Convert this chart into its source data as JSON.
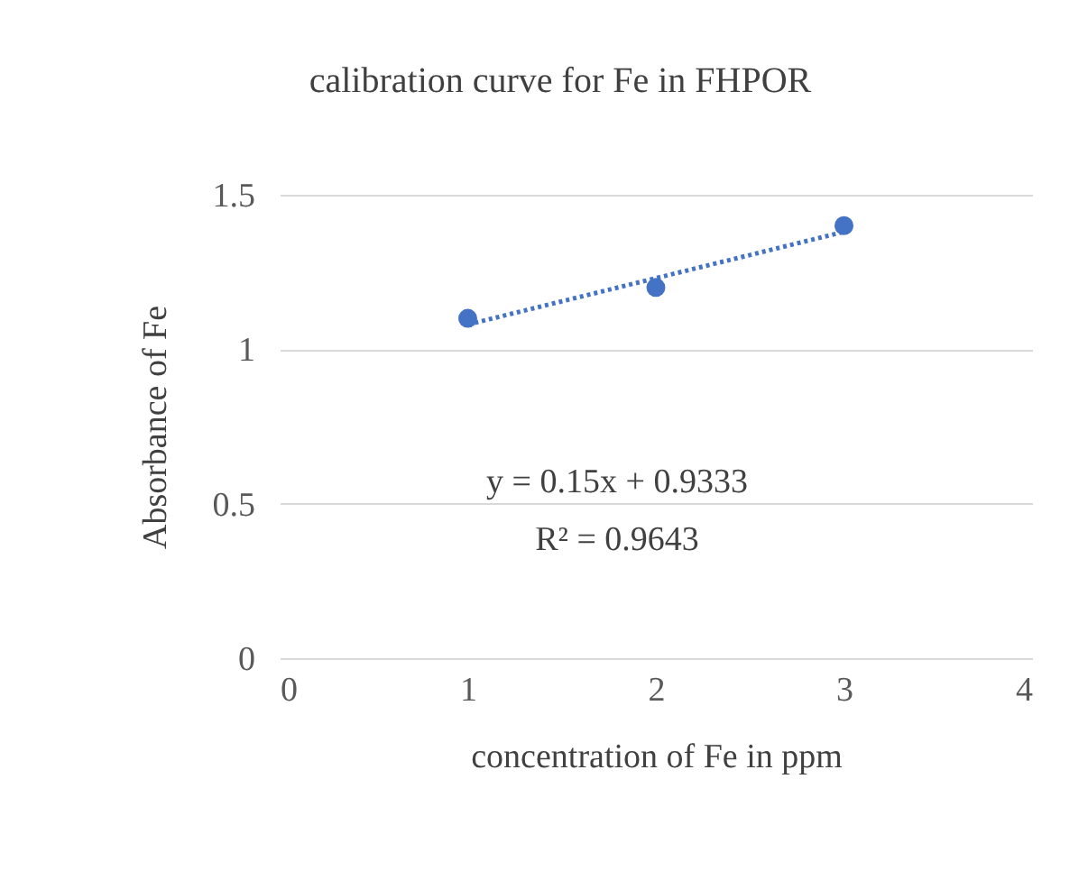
{
  "chart_data": {
    "type": "scatter",
    "title": "calibration curve for Fe in FHPOR",
    "xlabel": "concentration of Fe in ppm",
    "ylabel": "Absorbance of Fe",
    "x": [
      1,
      2,
      3
    ],
    "series": [
      {
        "type": "scatter",
        "color": "#4472c4",
        "values": [
          1.1,
          1.2,
          1.4
        ],
        "marker": "circle"
      },
      {
        "type": "line",
        "color": "#4472c4",
        "x": [
          1,
          3
        ],
        "values": [
          1.08,
          1.38
        ],
        "line_style": "dotted"
      }
    ],
    "xlim": [
      0,
      4
    ],
    "xticks": [
      0,
      1,
      2,
      3,
      4
    ],
    "ylim": [
      0,
      1.5
    ],
    "yticks": [
      0,
      0.5,
      1,
      1.5
    ],
    "grid": "y",
    "annotations": [
      "y = 0.15x + 0.9333",
      "R² = 0.9643"
    ]
  }
}
